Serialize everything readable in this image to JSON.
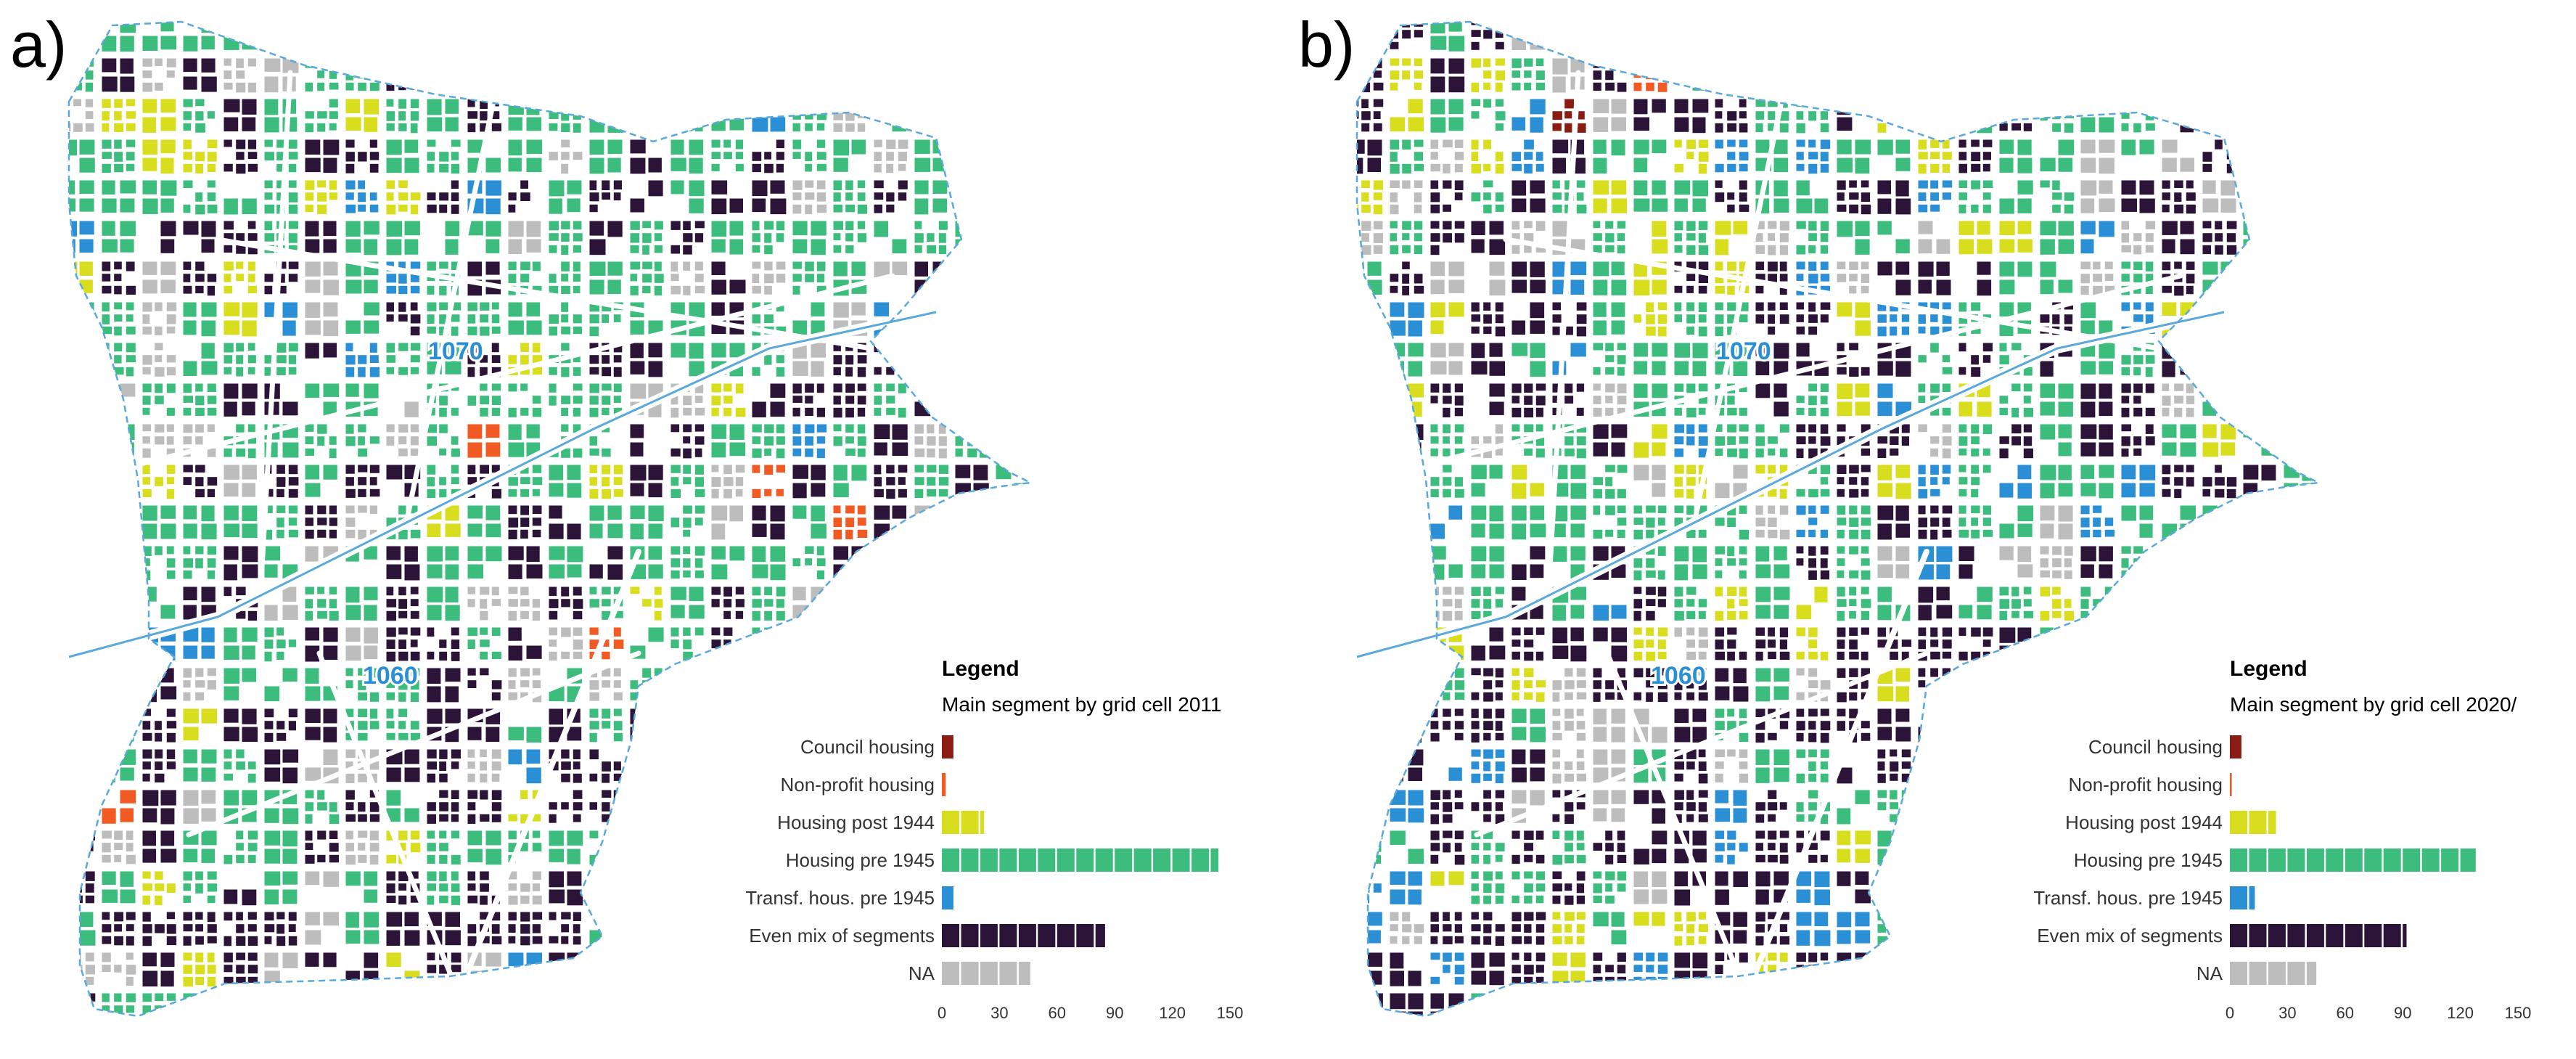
{
  "colors": {
    "council": "#8b1c13",
    "nonprofit": "#f15a22",
    "post1944": "#d8dd1e",
    "pre1945": "#3dbd7d",
    "transf": "#2a8fd4",
    "mix": "#2c1338",
    "na": "#bdbdbd",
    "boundary": "#5aa9dc",
    "district_label": "#2a8fd4"
  },
  "panels": [
    {
      "label": "a)",
      "legend_title": "Legend",
      "legend_subtitle": "Main segment by grid cell 2011",
      "district_labels": [
        "1070",
        "1060"
      ],
      "chart_data": {
        "type": "bar",
        "orientation": "horizontal",
        "categories": [
          "Council housing",
          "Non-profit housing",
          "Housing post 1944",
          "Housing pre 1945",
          "Transf. hous. pre 1945",
          "Even mix of segments",
          "NA"
        ],
        "values": [
          6,
          2,
          22,
          144,
          6,
          85,
          46
        ],
        "xticks": [
          "0",
          "30",
          "60",
          "90",
          "120",
          "150"
        ],
        "xlim": [
          0,
          150
        ]
      }
    },
    {
      "label": "b)",
      "legend_title": "Legend",
      "legend_subtitle": "Main segment by grid cell 2020/",
      "district_labels": [
        "1070",
        "1060"
      ],
      "chart_data": {
        "type": "bar",
        "orientation": "horizontal",
        "categories": [
          "Council housing",
          "Non-profit housing",
          "Housing post 1944",
          "Housing pre 1945",
          "Transf. hous. pre 1945",
          "Even mix of segments",
          "NA"
        ],
        "values": [
          6,
          1,
          24,
          128,
          13,
          92,
          45
        ],
        "xticks": [
          "0",
          "30",
          "60",
          "90",
          "120",
          "150"
        ],
        "xlim": [
          0,
          150
        ]
      }
    }
  ]
}
